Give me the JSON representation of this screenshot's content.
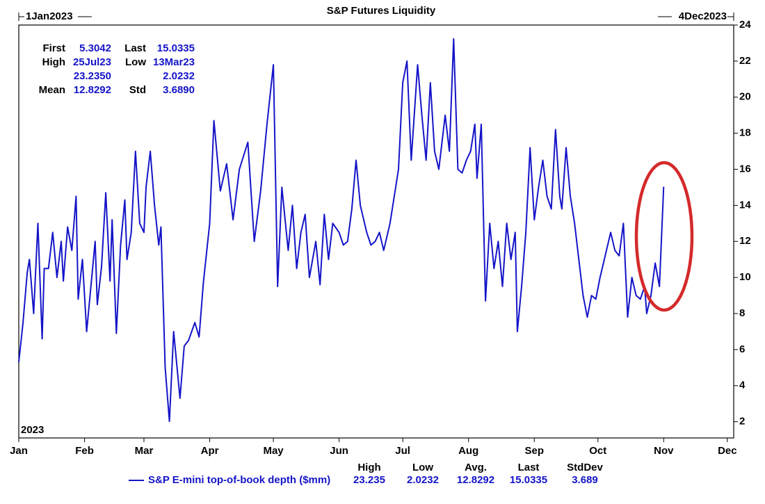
{
  "chart_data": {
    "type": "line",
    "title": "S&P Futures Liquidity",
    "start_label": "1Jan2023",
    "end_label": "4Dec2023",
    "year_label": "2023",
    "x": [
      0,
      2,
      4,
      5,
      7,
      9,
      11,
      12,
      14,
      16,
      18,
      20,
      21,
      23,
      25,
      27,
      28,
      30,
      32,
      34,
      36,
      37,
      39,
      41,
      43,
      44,
      46,
      48,
      50,
      51,
      53,
      55,
      57,
      59,
      60,
      62,
      64,
      66,
      67,
      69,
      71,
      73,
      76,
      78,
      80,
      83,
      85,
      87,
      90,
      92,
      95,
      98,
      101,
      104,
      108,
      111,
      114,
      117,
      120,
      122,
      124,
      127,
      129,
      131,
      133,
      135,
      137,
      140,
      142,
      144,
      146,
      148,
      151,
      153,
      155,
      157,
      159,
      161,
      164,
      166,
      168,
      170,
      172,
      175,
      177,
      179,
      181,
      183,
      185,
      188,
      190,
      192,
      194,
      196,
      198,
      201,
      203,
      205,
      207,
      209,
      211,
      213,
      215,
      216,
      218,
      220,
      222,
      224,
      226,
      228,
      230,
      232,
      234,
      235,
      237,
      239,
      241,
      243,
      245,
      247,
      249,
      251,
      253,
      255,
      256,
      258,
      260,
      262,
      264,
      266,
      268,
      270,
      272,
      274,
      275,
      277,
      279,
      281,
      283,
      285,
      287,
      289,
      291,
      293,
      295,
      296,
      298,
      300,
      302,
      304
    ],
    "series": [
      {
        "name": "S&P E-mini top-of-book depth ($mm)",
        "color": "#1414c8",
        "values": [
          5.3042,
          7.5,
          10.3,
          11,
          8,
          13,
          6.6,
          10.5,
          10.5,
          12.5,
          10,
          12,
          9.8,
          12.8,
          11.5,
          14.5,
          8.8,
          11,
          7,
          9.5,
          12,
          8.5,
          10.6,
          14.7,
          9.8,
          13.2,
          6.9,
          11.8,
          14.3,
          11,
          12.5,
          17,
          13,
          12.5,
          15,
          17,
          14,
          11.8,
          12.8,
          5,
          2.0232,
          7,
          3.3,
          6.2,
          6.5,
          7.5,
          6.7,
          9.7,
          13,
          18.7,
          14.8,
          16.3,
          13.2,
          16,
          17.5,
          12,
          14.8,
          18.5,
          21.8,
          9.5,
          15,
          11.5,
          14,
          10.5,
          12.5,
          13.5,
          10,
          12,
          9.6,
          13.5,
          11,
          13,
          12.5,
          11.8,
          12,
          13.8,
          16.5,
          14,
          12.5,
          11.8,
          12,
          12.5,
          11.5,
          13,
          14.5,
          16,
          20.8,
          22,
          16.5,
          21.8,
          19,
          16.5,
          20.8,
          17,
          16,
          19,
          17,
          23.235,
          16,
          15.8,
          16.5,
          17,
          18.5,
          15.5,
          18.5,
          8.7,
          13,
          10.5,
          12,
          9.5,
          13,
          11,
          12.5,
          7,
          9.5,
          12.5,
          17.2,
          13.2,
          15,
          16.5,
          14.5,
          13.8,
          18.2,
          14.5,
          13.8,
          17.2,
          14.5,
          13,
          11,
          9,
          7.8,
          9,
          8.8,
          10,
          10.5,
          11.5,
          12.5,
          11.5,
          11.2,
          13,
          7.8,
          10,
          9,
          8.8,
          9.5,
          8,
          9,
          10.8,
          9.5,
          15.0335
        ]
      }
    ],
    "xlim": [
      0,
      337
    ],
    "xticks": [
      {
        "value": 0,
        "label": "Jan"
      },
      {
        "value": 31,
        "label": "Feb"
      },
      {
        "value": 59,
        "label": "Mar"
      },
      {
        "value": 90,
        "label": "Apr"
      },
      {
        "value": 120,
        "label": "May"
      },
      {
        "value": 151,
        "label": "Jun"
      },
      {
        "value": 181,
        "label": "Jul"
      },
      {
        "value": 212,
        "label": "Aug"
      },
      {
        "value": 243,
        "label": "Sep"
      },
      {
        "value": 273,
        "label": "Oct"
      },
      {
        "value": 304,
        "label": "Nov"
      },
      {
        "value": 334,
        "label": "Dec"
      }
    ],
    "ylim": [
      1.1,
      24
    ],
    "yticks": [
      2,
      4,
      6,
      8,
      10,
      12,
      14,
      16,
      18,
      20,
      22,
      24
    ],
    "stats_box": [
      [
        "First",
        "5.3042",
        "Last",
        "15.0335"
      ],
      [
        "High",
        "25Jul23",
        "Low",
        "13Mar23"
      ],
      [
        "",
        "23.2350",
        "",
        "2.0232"
      ],
      [
        "Mean",
        "12.8292",
        "Std",
        "3.6890"
      ]
    ],
    "legend_headers": [
      "High",
      "Low",
      "Avg.",
      "Last",
      "StdDev"
    ],
    "legend_values": [
      "23.235",
      "2.0232",
      "12.8292",
      "15.0335",
      "3.689"
    ]
  }
}
